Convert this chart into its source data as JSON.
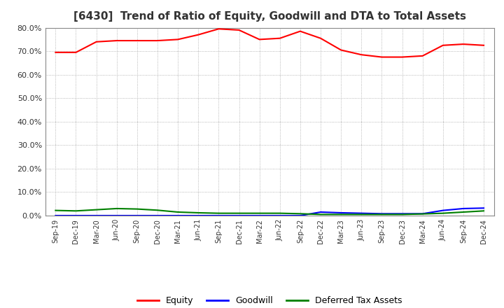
{
  "title": "[6430]  Trend of Ratio of Equity, Goodwill and DTA to Total Assets",
  "x_labels": [
    "Sep-19",
    "Dec-19",
    "Mar-20",
    "Jun-20",
    "Sep-20",
    "Dec-20",
    "Mar-21",
    "Jun-21",
    "Sep-21",
    "Dec-21",
    "Mar-22",
    "Jun-22",
    "Sep-22",
    "Dec-22",
    "Mar-23",
    "Jun-23",
    "Sep-23",
    "Dec-23",
    "Mar-24",
    "Jun-24",
    "Sep-24",
    "Dec-24"
  ],
  "equity": [
    69.5,
    69.5,
    74.0,
    74.5,
    74.5,
    74.5,
    75.0,
    77.0,
    79.5,
    79.0,
    75.0,
    75.5,
    78.5,
    75.5,
    70.5,
    68.5,
    67.5,
    67.5,
    68.0,
    72.5,
    73.0,
    72.5
  ],
  "goodwill": [
    0.0,
    0.0,
    0.0,
    0.0,
    0.0,
    0.0,
    0.0,
    0.0,
    0.0,
    0.0,
    0.0,
    0.0,
    0.0,
    1.5,
    1.2,
    1.0,
    0.8,
    0.8,
    0.8,
    2.2,
    3.0,
    3.2
  ],
  "dta": [
    2.2,
    2.0,
    2.5,
    3.0,
    2.8,
    2.3,
    1.5,
    1.2,
    1.0,
    1.0,
    1.0,
    1.0,
    0.8,
    0.5,
    0.5,
    0.5,
    0.5,
    0.5,
    0.7,
    1.0,
    1.5,
    2.0
  ],
  "equity_color": "#FF0000",
  "goodwill_color": "#0000FF",
  "dta_color": "#008000",
  "ylim": [
    0.0,
    80.0
  ],
  "yticks": [
    0.0,
    10.0,
    20.0,
    30.0,
    40.0,
    50.0,
    60.0,
    70.0,
    80.0
  ],
  "background_color": "#FFFFFF",
  "plot_bg_color": "#FFFFFF",
  "grid_color": "#999999",
  "title_fontsize": 11,
  "title_color": "#333333",
  "legend_labels": [
    "Equity",
    "Goodwill",
    "Deferred Tax Assets"
  ]
}
